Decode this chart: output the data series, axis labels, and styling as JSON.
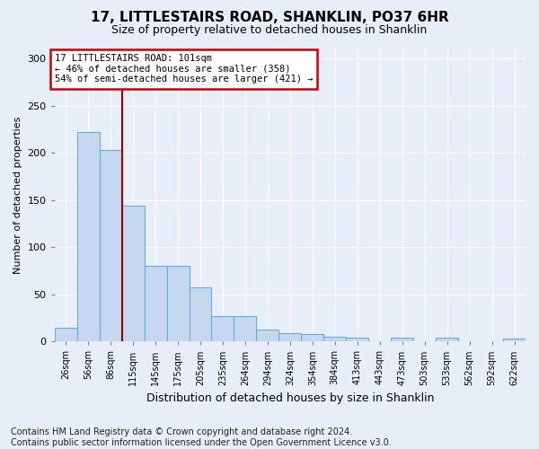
{
  "title1": "17, LITTLESTAIRS ROAD, SHANKLIN, PO37 6HR",
  "title2": "Size of property relative to detached houses in Shanklin",
  "xlabel": "Distribution of detached houses by size in Shanklin",
  "ylabel": "Number of detached properties",
  "footer": "Contains HM Land Registry data © Crown copyright and database right 2024.\nContains public sector information licensed under the Open Government Licence v3.0.",
  "bin_labels": [
    "26sqm",
    "56sqm",
    "86sqm",
    "115sqm",
    "145sqm",
    "175sqm",
    "205sqm",
    "235sqm",
    "264sqm",
    "294sqm",
    "324sqm",
    "354sqm",
    "384sqm",
    "413sqm",
    "443sqm",
    "473sqm",
    "503sqm",
    "533sqm",
    "562sqm",
    "592sqm",
    "622sqm"
  ],
  "bar_heights": [
    15,
    222,
    203,
    144,
    80,
    80,
    57,
    27,
    27,
    13,
    9,
    8,
    5,
    4,
    0,
    4,
    0,
    4,
    0,
    0,
    3
  ],
  "bar_color": "#c5d8f0",
  "bar_edge_color": "#6aaad4",
  "vline_x_index": 2.5,
  "vline_color": "#990000",
  "annotation_text": "17 LITTLESTAIRS ROAD: 101sqm\n← 46% of detached houses are smaller (358)\n54% of semi-detached houses are larger (421) →",
  "annotation_box_facecolor": "white",
  "annotation_box_edgecolor": "#cc0000",
  "ylim": [
    0,
    310
  ],
  "yticks": [
    0,
    50,
    100,
    150,
    200,
    250,
    300
  ],
  "bg_color": "#e8eef8",
  "fig_bg_color": "#e8eef8",
  "title_fontsize": 11,
  "subtitle_fontsize": 9,
  "ylabel_fontsize": 8,
  "xlabel_fontsize": 9,
  "tick_fontsize": 8,
  "footer_fontsize": 7
}
